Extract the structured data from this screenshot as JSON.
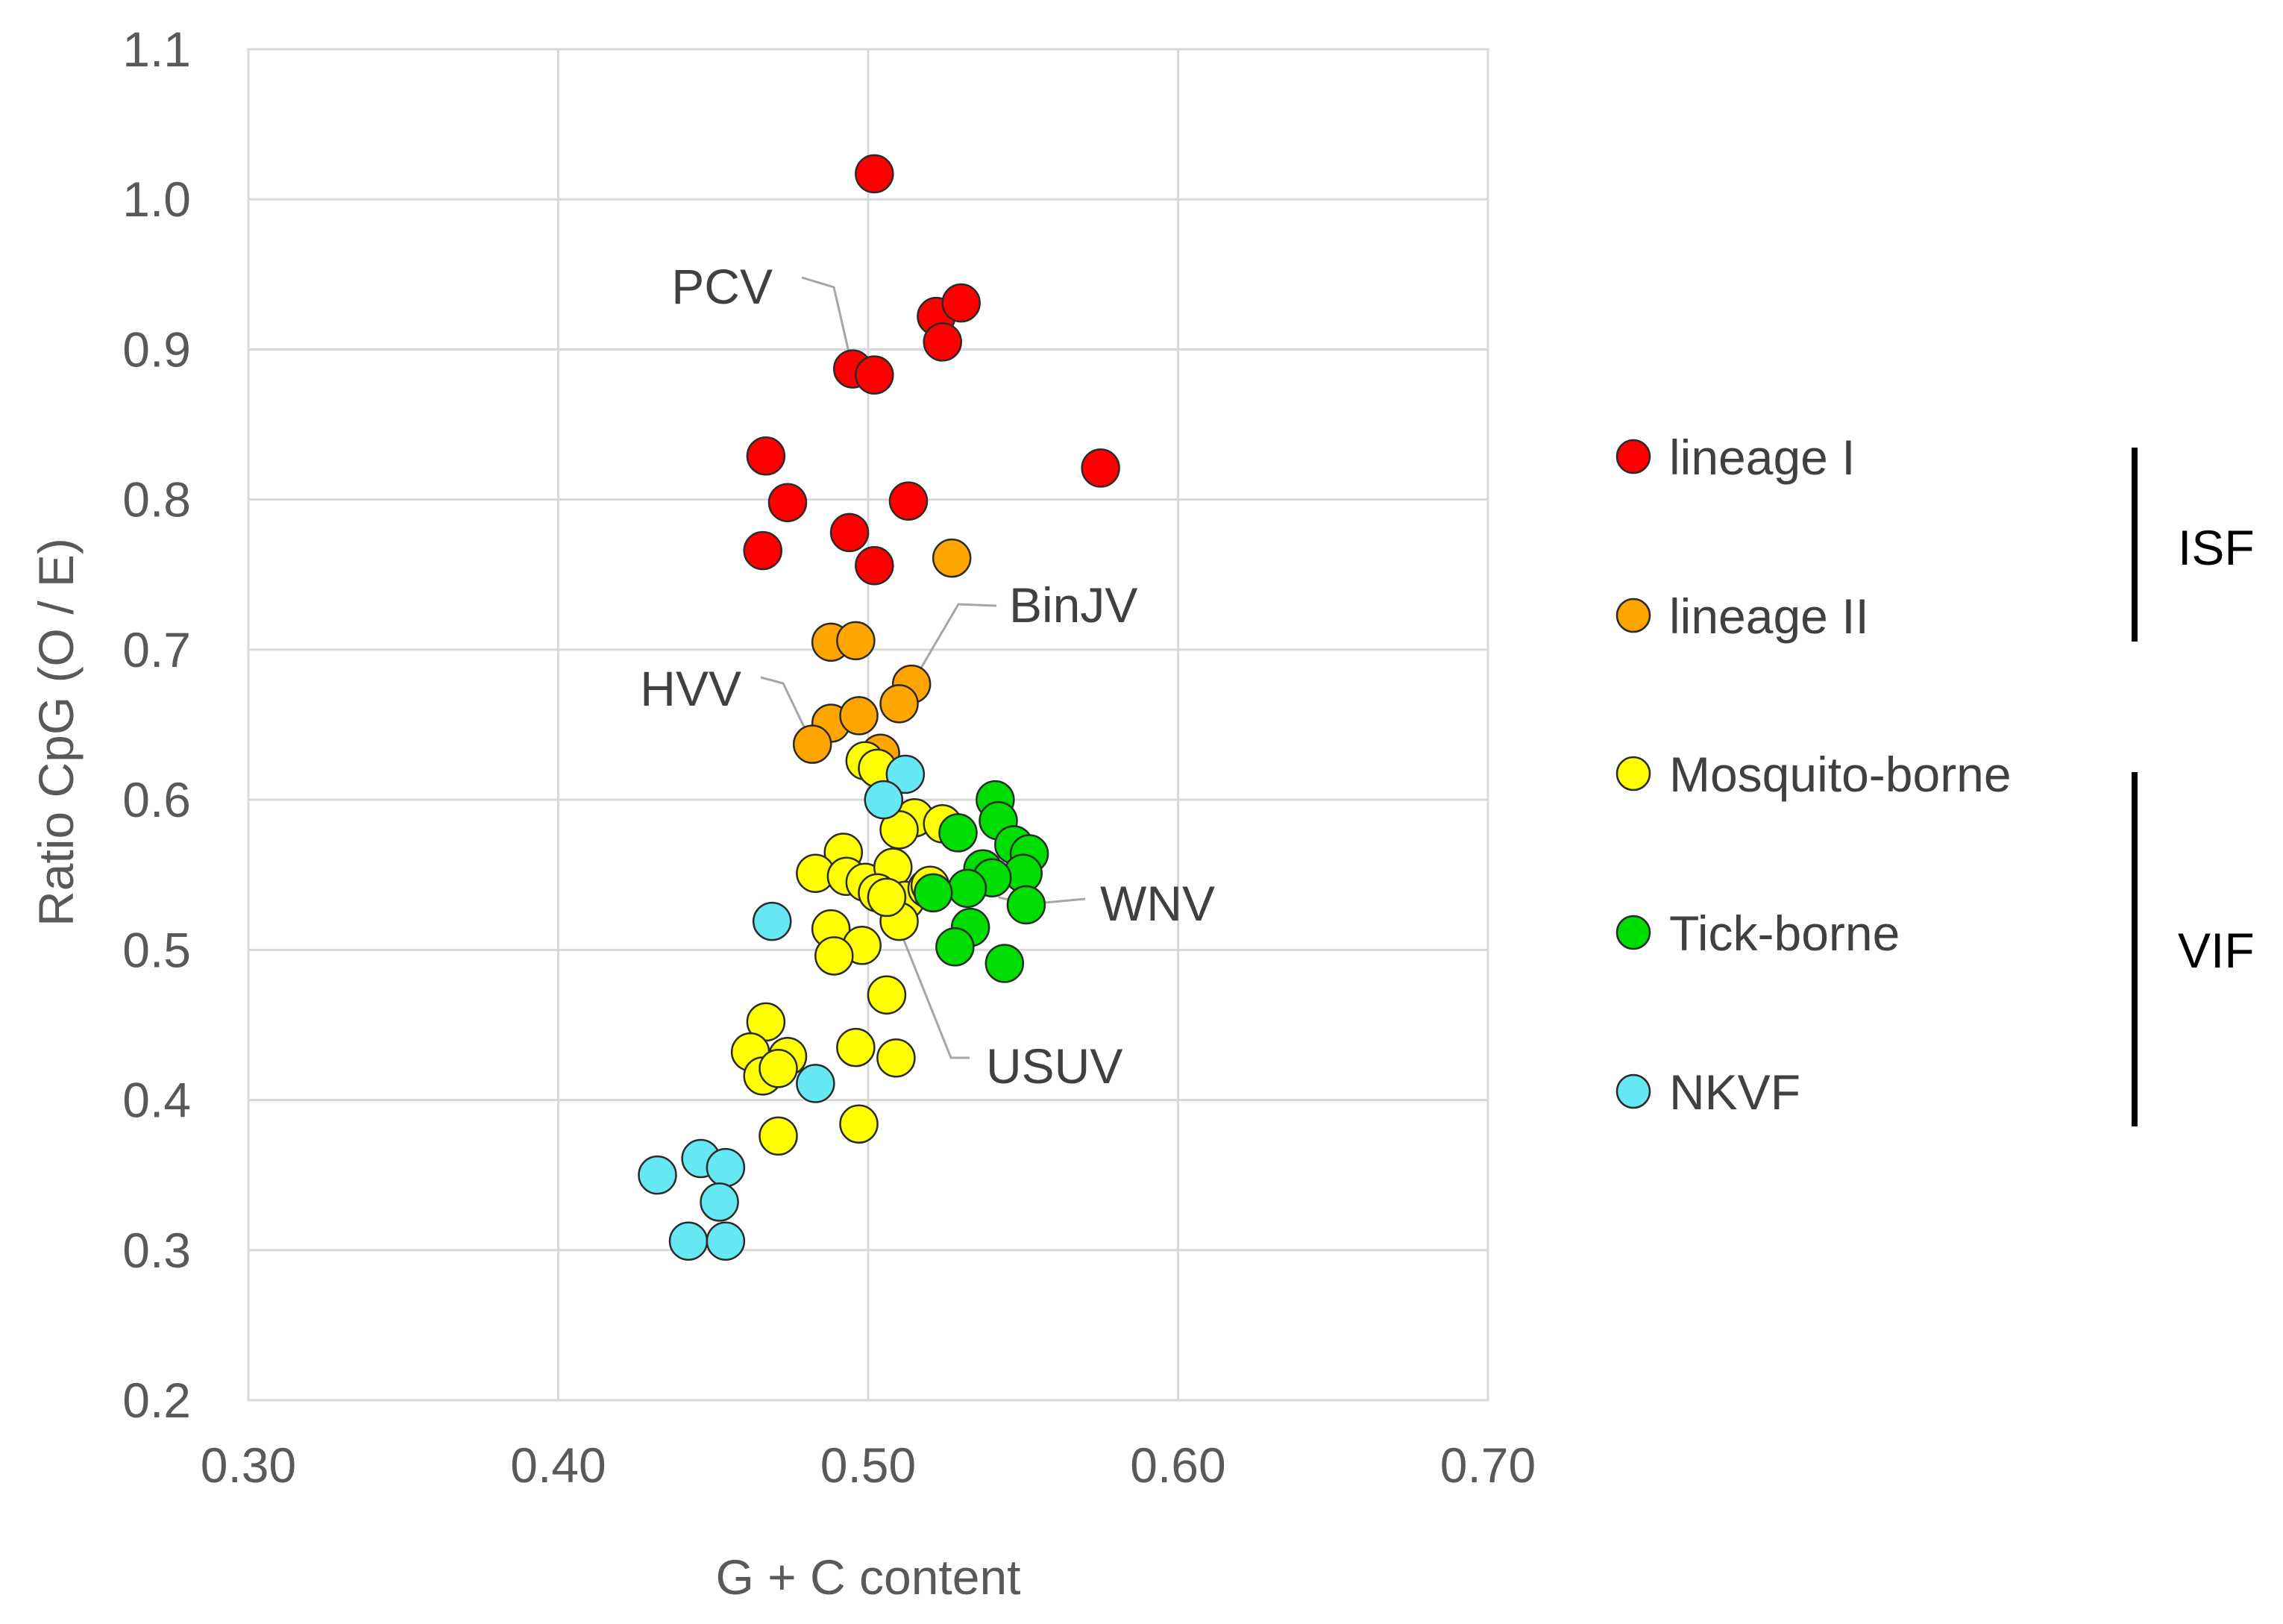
{
  "chart_data": {
    "type": "scatter",
    "title": "",
    "xlabel": "G + C content",
    "ylabel": "Ratio CpG (O / E)",
    "xlim": [
      0.3,
      0.7
    ],
    "ylim": [
      0.2,
      1.1
    ],
    "xticks": [
      "0.30",
      "0.40",
      "0.50",
      "0.60",
      "0.70"
    ],
    "yticks": [
      "0.2",
      "0.3",
      "0.4",
      "0.5",
      "0.6",
      "0.7",
      "0.8",
      "0.9",
      "1.0",
      "1.1"
    ],
    "grid": true,
    "legend_position": "right",
    "series": [
      {
        "name": "lineage I",
        "color": "#ff0000",
        "x": [
          0.502,
          0.522,
          0.53,
          0.524,
          0.495,
          0.502,
          0.575,
          0.467,
          0.474,
          0.494,
          0.513,
          0.466,
          0.502
        ],
        "y": [
          1.017,
          0.922,
          0.931,
          0.905,
          0.887,
          0.883,
          0.821,
          0.829,
          0.798,
          0.778,
          0.799,
          0.766,
          0.756
        ]
      },
      {
        "name": "lineage II",
        "color": "#ffa500",
        "x": [
          0.527,
          0.488,
          0.496,
          0.514,
          0.51,
          0.488,
          0.497,
          0.504,
          0.482
        ],
        "y": [
          0.761,
          0.705,
          0.706,
          0.677,
          0.664,
          0.651,
          0.656,
          0.631,
          0.637
        ]
      },
      {
        "name": "Mosquito-borne",
        "color": "#ffff00",
        "x": [
          0.499,
          0.503,
          0.515,
          0.524,
          0.51,
          0.492,
          0.483,
          0.493,
          0.499,
          0.508,
          0.512,
          0.503,
          0.519,
          0.488,
          0.498,
          0.51,
          0.506,
          0.489,
          0.506,
          0.467,
          0.462,
          0.466,
          0.474,
          0.496,
          0.509,
          0.471,
          0.471,
          0.497,
          0.52
        ],
        "y": [
          0.626,
          0.621,
          0.588,
          0.584,
          0.58,
          0.565,
          0.551,
          0.549,
          0.545,
          0.555,
          0.533,
          0.538,
          0.541,
          0.514,
          0.503,
          0.519,
          0.47,
          0.496,
          0.535,
          0.452,
          0.432,
          0.416,
          0.429,
          0.435,
          0.428,
          0.421,
          0.376,
          0.384,
          0.543
        ]
      },
      {
        "name": "Tick-borne",
        "color": "#00dd00",
        "x": [
          0.541,
          0.529,
          0.542,
          0.547,
          0.552,
          0.55,
          0.537,
          0.54,
          0.532,
          0.521,
          0.551,
          0.533,
          0.528,
          0.544
        ],
        "y": [
          0.6,
          0.578,
          0.586,
          0.57,
          0.564,
          0.551,
          0.554,
          0.548,
          0.541,
          0.538,
          0.53,
          0.515,
          0.502,
          0.491
        ]
      },
      {
        "name": "NKVF",
        "color": "#66e8f2",
        "x": [
          0.512,
          0.505,
          0.469,
          0.483,
          0.432,
          0.446,
          0.454,
          0.452,
          0.442,
          0.454
        ],
        "y": [
          0.617,
          0.6,
          0.519,
          0.411,
          0.35,
          0.361,
          0.355,
          0.332,
          0.306,
          0.306
        ]
      }
    ],
    "annotations": [
      {
        "label": "PCV",
        "x": 0.495,
        "y": 0.887
      },
      {
        "label": "BinJV",
        "x": 0.514,
        "y": 0.677
      },
      {
        "label": "HVV",
        "x": 0.482,
        "y": 0.637
      },
      {
        "label": "WNV",
        "x": 0.542,
        "y": 0.535
      },
      {
        "label": "USUV",
        "x": 0.506,
        "y": 0.535
      }
    ],
    "groups": [
      {
        "label": "ISF",
        "members": [
          "lineage I",
          "lineage II"
        ]
      },
      {
        "label": "VIF",
        "members": [
          "Mosquito-borne",
          "Tick-borne",
          "NKVF"
        ]
      }
    ]
  }
}
